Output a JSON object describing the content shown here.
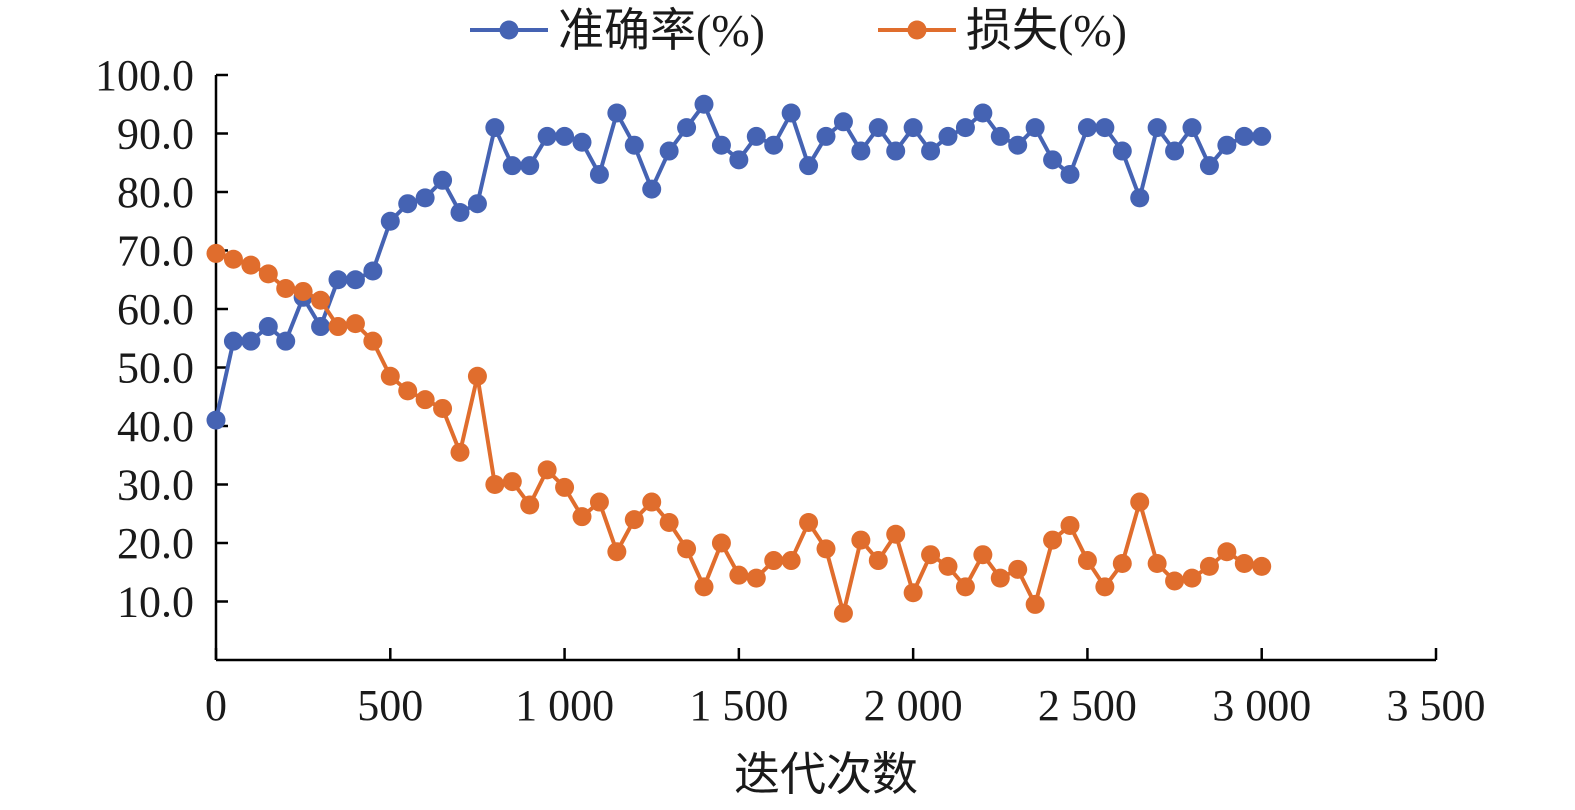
{
  "chart_data": {
    "type": "line",
    "title": "",
    "xlabel": "迭代次数",
    "ylabel": "",
    "xlim": [
      0,
      3500
    ],
    "ylim": [
      0,
      100
    ],
    "x_ticks": [
      0,
      500,
      1000,
      1500,
      2000,
      2500,
      3000,
      3500
    ],
    "x_tick_labels": [
      "0",
      "500",
      "1 000",
      "1 500",
      "2 000",
      "2 500",
      "3 000",
      "3 500"
    ],
    "y_ticks": [
      10,
      20,
      30,
      40,
      50,
      60,
      70,
      80,
      90,
      100
    ],
    "y_tick_labels": [
      "10.0",
      "20.0",
      "30.0",
      "40.0",
      "50.0",
      "60.0",
      "70.0",
      "80.0",
      "90.0",
      "100.0"
    ],
    "legend_position": "top-center",
    "grid": false,
    "x": [
      0,
      50,
      100,
      150,
      200,
      250,
      300,
      350,
      400,
      450,
      500,
      550,
      600,
      650,
      700,
      750,
      800,
      850,
      900,
      950,
      1000,
      1050,
      1100,
      1150,
      1200,
      1250,
      1300,
      1350,
      1400,
      1450,
      1500,
      1550,
      1600,
      1650,
      1700,
      1750,
      1800,
      1850,
      1900,
      1950,
      2000,
      2050,
      2100,
      2150,
      2200,
      2250,
      2300,
      2350,
      2400,
      2450,
      2500,
      2550,
      2600,
      2650,
      2700,
      2750,
      2800,
      2850,
      2900,
      2950,
      3000
    ],
    "series": [
      {
        "name": "准确率(%)",
        "color": "#4563b3",
        "values": [
          41,
          54.5,
          54.5,
          57,
          54.5,
          62,
          57,
          65,
          65,
          66.5,
          75,
          78,
          79,
          82,
          76.5,
          78,
          91,
          84.5,
          84.5,
          89.5,
          89.5,
          88.5,
          83,
          93.5,
          88,
          80.5,
          87,
          91,
          95,
          88,
          85.5,
          89.5,
          88,
          93.5,
          84.5,
          89.5,
          92,
          87,
          91,
          87,
          91,
          87,
          89.5,
          91,
          93.5,
          89.5,
          88,
          91,
          85.5,
          83,
          91,
          91,
          87,
          79,
          91,
          87,
          91,
          84.5,
          88,
          89.5,
          89.5
        ]
      },
      {
        "name": "损失(%)",
        "color": "#e06d2d",
        "values": [
          69.5,
          68.5,
          67.5,
          66,
          63.5,
          63,
          61.5,
          57,
          57.5,
          54.5,
          48.5,
          46,
          44.5,
          43,
          35.5,
          48.5,
          30,
          30.5,
          26.5,
          32.5,
          29.5,
          24.5,
          27,
          18.5,
          24,
          27,
          23.5,
          19,
          12.5,
          20,
          14.5,
          14,
          17,
          17,
          23.5,
          19,
          8,
          20.5,
          17,
          21.5,
          11.5,
          18,
          16,
          12.5,
          18,
          14,
          15.5,
          9.5,
          20.5,
          23,
          17,
          12.5,
          16.5,
          27,
          16.5,
          13.5,
          14,
          16,
          18.5,
          16.5,
          16
        ]
      }
    ]
  }
}
